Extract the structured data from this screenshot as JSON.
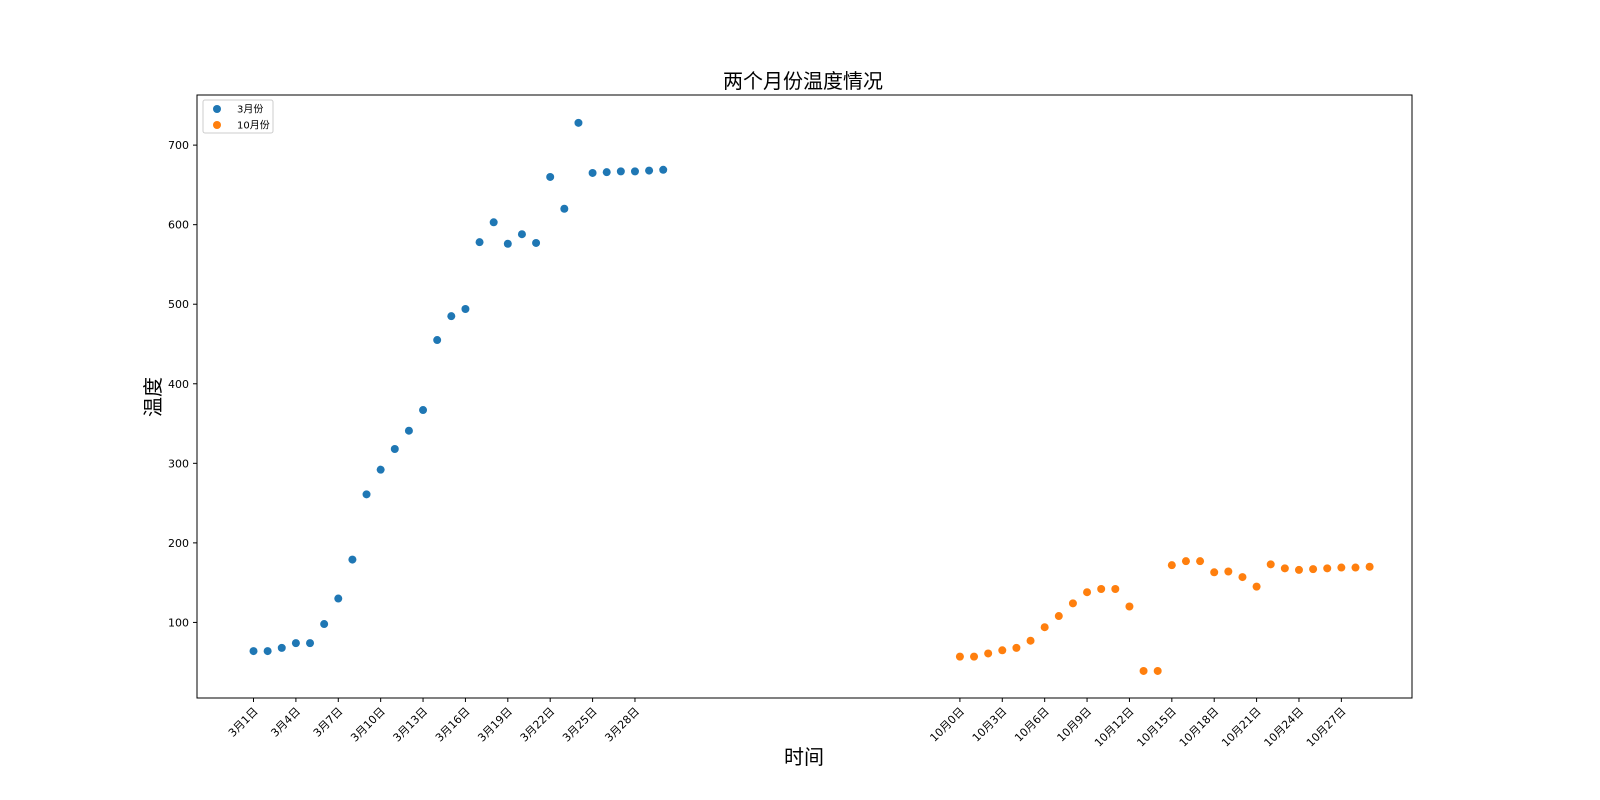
{
  "chart_data": {
    "type": "scatter",
    "title": "两个月份温度情况",
    "xlabel": "时间",
    "ylabel": "温度",
    "ylim": [
      5,
      763
    ],
    "xlim": [
      -4,
      82
    ],
    "yticks": [
      100,
      200,
      300,
      400,
      500,
      600,
      700
    ],
    "grid": false,
    "legend_position": "top-left",
    "series": [
      {
        "name": "3月份",
        "color": "#1f77b4",
        "x": [
          0,
          1,
          2,
          3,
          4,
          5,
          6,
          7,
          8,
          9,
          10,
          11,
          12,
          13,
          14,
          15,
          16,
          17,
          18,
          19,
          20,
          21,
          22,
          23,
          24,
          25,
          26,
          27,
          28,
          29
        ],
        "y": [
          64,
          64,
          68,
          74,
          74,
          98,
          130,
          179,
          261,
          292,
          318,
          341,
          367,
          455,
          485,
          494,
          578,
          603,
          576,
          588,
          577,
          660,
          620,
          728,
          665,
          666,
          667,
          667,
          668,
          669
        ]
      },
      {
        "name": "10月份",
        "color": "#ff7f0e",
        "x": [
          50,
          51,
          52,
          53,
          54,
          55,
          56,
          57,
          58,
          59,
          60,
          61,
          62,
          63,
          64,
          65,
          66,
          67,
          68,
          69,
          70,
          71,
          72,
          73,
          74,
          75,
          76,
          77,
          78,
          79
        ],
        "y": [
          57,
          57,
          61,
          65,
          68,
          77,
          94,
          108,
          124,
          138,
          142,
          142,
          120,
          39,
          39,
          172,
          177,
          177,
          163,
          164,
          157,
          145,
          173,
          168,
          166,
          167,
          168,
          169,
          169,
          170
        ]
      }
    ],
    "xticks": [
      {
        "x": 0,
        "label": "3月1日"
      },
      {
        "x": 3,
        "label": "3月4日"
      },
      {
        "x": 6,
        "label": "3月7日"
      },
      {
        "x": 9,
        "label": "3月10日"
      },
      {
        "x": 12,
        "label": "3月13日"
      },
      {
        "x": 15,
        "label": "3月16日"
      },
      {
        "x": 18,
        "label": "3月19日"
      },
      {
        "x": 21,
        "label": "3月22日"
      },
      {
        "x": 24,
        "label": "3月25日"
      },
      {
        "x": 27,
        "label": "3月28日"
      },
      {
        "x": 50,
        "label": "10月0日"
      },
      {
        "x": 53,
        "label": "10月3日"
      },
      {
        "x": 56,
        "label": "10月6日"
      },
      {
        "x": 59,
        "label": "10月9日"
      },
      {
        "x": 62,
        "label": "10月12日"
      },
      {
        "x": 65,
        "label": "10月15日"
      },
      {
        "x": 68,
        "label": "10月18日"
      },
      {
        "x": 71,
        "label": "10月21日"
      },
      {
        "x": 74,
        "label": "10月24日"
      },
      {
        "x": 77,
        "label": "10月27日"
      }
    ]
  }
}
